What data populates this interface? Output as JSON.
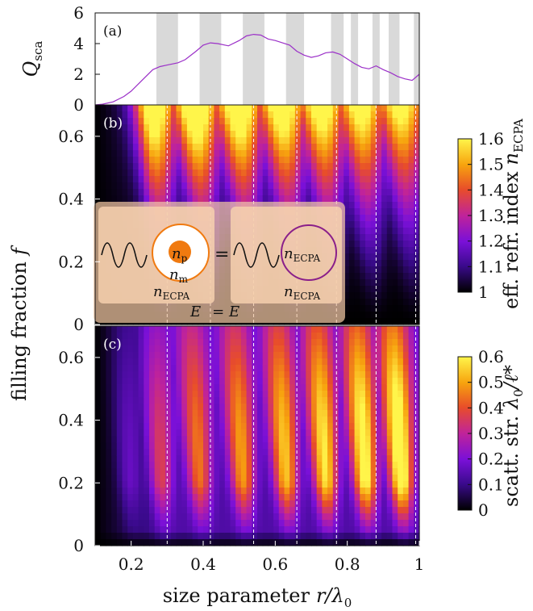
{
  "chart_data": [
    {
      "id": "a",
      "type": "line",
      "panel_label": "(a)",
      "ylabel": "Q_sca",
      "ylabel_main": "Q",
      "ylabel_sub": "sca",
      "xlim": [
        0.1,
        1.0
      ],
      "ylim": [
        0,
        6
      ],
      "yticks": [
        0,
        2,
        4,
        6
      ],
      "yticklabels": [
        "0",
        "2",
        "4",
        "6"
      ],
      "x": [
        0.1,
        0.12,
        0.15,
        0.18,
        0.2,
        0.23,
        0.26,
        0.28,
        0.3,
        0.33,
        0.35,
        0.38,
        0.4,
        0.42,
        0.44,
        0.47,
        0.5,
        0.52,
        0.54,
        0.56,
        0.58,
        0.6,
        0.62,
        0.64,
        0.66,
        0.68,
        0.7,
        0.72,
        0.74,
        0.76,
        0.78,
        0.8,
        0.82,
        0.84,
        0.86,
        0.88,
        0.9,
        0.92,
        0.94,
        0.96,
        0.98,
        1.0
      ],
      "y": [
        0.0,
        0.05,
        0.2,
        0.55,
        0.9,
        1.6,
        2.3,
        2.5,
        2.6,
        2.75,
        2.95,
        3.5,
        3.9,
        4.05,
        4.0,
        3.85,
        4.2,
        4.5,
        4.6,
        4.55,
        4.3,
        4.2,
        4.05,
        3.9,
        3.5,
        3.25,
        3.1,
        3.2,
        3.4,
        3.45,
        3.3,
        3.0,
        2.7,
        2.45,
        2.35,
        2.55,
        2.3,
        2.1,
        1.85,
        1.7,
        1.6,
        2.0
      ],
      "shaded_bands": [
        [
          0.27,
          0.33
        ],
        [
          0.39,
          0.45
        ],
        [
          0.51,
          0.57
        ],
        [
          0.63,
          0.68
        ],
        [
          0.755,
          0.79
        ],
        [
          0.81,
          0.83
        ],
        [
          0.87,
          0.89
        ],
        [
          0.915,
          0.945
        ],
        [
          0.985,
          1.0
        ]
      ],
      "line_color": "#9b30c8",
      "band_color": "#d9d9d9"
    },
    {
      "id": "b",
      "type": "heatmap",
      "panel_label": "(b)",
      "ylim": [
        0,
        0.7
      ],
      "yticks": [
        0,
        0.2,
        0.4,
        0.6
      ],
      "yticklabels": [
        "0",
        "0.2",
        "0.4",
        "0.6"
      ],
      "colorbar_label": "eff. refr. index n_ECPA",
      "colorbar_label_text": "eff. refr. index",
      "colorbar_label_symbol": "n",
      "colorbar_label_sub": "ECPA",
      "crange": [
        1.0,
        1.6
      ],
      "cticks": [
        1.0,
        1.1,
        1.2,
        1.3,
        1.4,
        1.5,
        1.6
      ],
      "cticklabels": [
        "1",
        "1.1",
        "1.2",
        "1.3",
        "1.4",
        "1.5",
        "1.6"
      ],
      "ridges_x": [
        0.3,
        0.42,
        0.54,
        0.66,
        0.77,
        0.88,
        0.99
      ],
      "inset": {
        "particle_index": "n_p",
        "particle_index_symbol": "n",
        "particle_index_sub": "p",
        "matrix_index": "n_m",
        "matrix_index_symbol": "n",
        "matrix_index_sub": "m",
        "effective_index_left": "n_ECPA",
        "effective_index_right": "n_ECPA",
        "effective_index_right_lower": "n_ECPA",
        "effective_symbol": "n",
        "effective_sub": "ECPA",
        "equals_sign": "=",
        "condition_E": "E",
        "condition_eq": "= E",
        "particle_color": "#f07a10",
        "ring_color_left": "#f07a10",
        "ring_color_right": "#8a1f8a"
      }
    },
    {
      "id": "c",
      "type": "heatmap",
      "panel_label": "(c)",
      "xlabel": "size parameter r/λ0",
      "xlabel_text": "size parameter",
      "xlabel_symbol": "r/λ",
      "xlabel_sub": "0",
      "ylabel": "filling fraction f",
      "ylabel_text": "filling fraction",
      "ylabel_symbol": "f",
      "xlim": [
        0.1,
        1.0
      ],
      "xticks": [
        0.2,
        0.4,
        0.6,
        0.8,
        1.0
      ],
      "xticklabels": [
        "0.2",
        "0.4",
        "0.6",
        "0.8",
        "1"
      ],
      "ylim": [
        0,
        0.7
      ],
      "yticks": [
        0,
        0.2,
        0.4,
        0.6
      ],
      "yticklabels": [
        "0",
        "0.2",
        "0.4",
        "0.6"
      ],
      "colorbar_label": "scatt. str. λ0/ℓ*",
      "colorbar_label_text": "scatt. str.",
      "colorbar_label_symbol": "λ",
      "colorbar_label_sub": "0",
      "colorbar_label_rest": "/ℓ*",
      "crange": [
        0,
        0.6
      ],
      "cticks": [
        0,
        0.1,
        0.2,
        0.3,
        0.4,
        0.5,
        0.6
      ],
      "cticklabels": [
        "0",
        "0.1",
        "0.2",
        "0.3",
        "0.4",
        "0.5",
        "0.6"
      ],
      "ridges_x": [
        0.2,
        0.29,
        0.4,
        0.52,
        0.64,
        0.75,
        0.86,
        0.96
      ]
    }
  ],
  "guide_lines_x": [
    0.3,
    0.42,
    0.54,
    0.66,
    0.77,
    0.88,
    0.99
  ],
  "colormap": [
    "#000000",
    "#3a0a8c",
    "#7a10d8",
    "#c0239a",
    "#e84d2a",
    "#f7a30e",
    "#fff54a"
  ]
}
